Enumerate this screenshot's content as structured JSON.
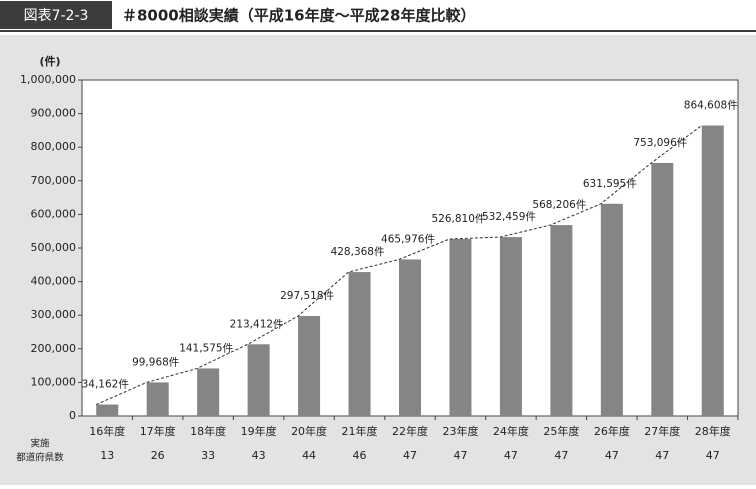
{
  "chart_data": {
    "type": "bar",
    "figure_label": "図表7-2-3",
    "title": "＃8000相談実績（平成16年度〜平成28年度比較）",
    "y_label": "(件)",
    "categories": [
      "16年度",
      "17年度",
      "18年度",
      "19年度",
      "20年度",
      "21年度",
      "22年度",
      "23年度",
      "24年度",
      "25年度",
      "26年度",
      "27年度",
      "28年度"
    ],
    "values": [
      34162,
      99968,
      141575,
      213412,
      297518,
      428368,
      465976,
      526810,
      532459,
      568206,
      631595,
      753096,
      864608
    ],
    "value_labels": [
      "34,162件",
      "99,968件",
      "141,575件",
      "213,412件",
      "297,518件",
      "428,368件",
      "465,976件",
      "526,810件",
      "532,459件",
      "568,206件",
      "631,595件",
      "753,096件",
      "864,608件"
    ],
    "color": "#858585",
    "connector_line": true,
    "ylim": [
      0,
      1000000
    ],
    "yticks": [
      0,
      {
        "value": 100000,
        "label": "100,000"
      },
      {
        "value": 200000,
        "label": "200,000"
      },
      {
        "value": 300000,
        "label": "300,000"
      },
      {
        "value": 400000,
        "label": "400,000"
      },
      {
        "value": 500000,
        "label": "500,000"
      },
      {
        "value": 600000,
        "label": "600,000"
      },
      {
        "value": 700000,
        "label": "700,000"
      },
      {
        "value": 800000,
        "label": "800,000"
      },
      {
        "value": 900000,
        "label": "900,000"
      },
      {
        "value": 1000000,
        "label": "1,000,000"
      }
    ],
    "table_label": [
      "実施",
      "都道府県数"
    ],
    "table_values": [
      13,
      26,
      33,
      43,
      44,
      46,
      47,
      47,
      47,
      47,
      47,
      47,
      47
    ]
  }
}
